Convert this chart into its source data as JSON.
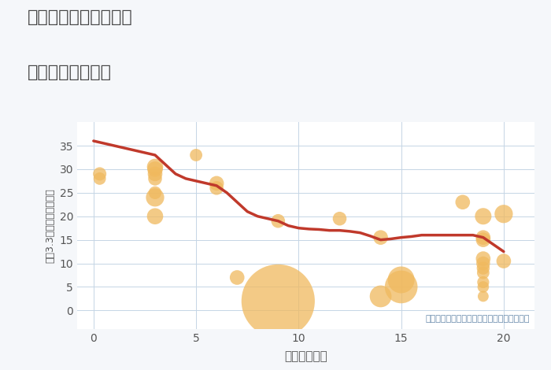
{
  "title_line1": "埼玉県東松山市元宿の",
  "title_line2": "駅距離別土地価格",
  "xlabel": "駅距離（分）",
  "ylabel": "坪（3.3㎡）単価（万円）",
  "annotation": "円の大きさは、取引のあった物件面積を示す",
  "bg_color": "#f5f7fa",
  "plot_bg_color": "#ffffff",
  "scatter_color": "#f0b95e",
  "scatter_alpha": 0.75,
  "line_color": "#c0392b",
  "line_width": 2.5,
  "xlim": [
    -0.8,
    21.5
  ],
  "ylim": [
    -4,
    40
  ],
  "xticks": [
    0,
    5,
    10,
    15,
    20
  ],
  "yticks": [
    0,
    5,
    10,
    15,
    20,
    25,
    30,
    35
  ],
  "scatter_x": [
    0.3,
    0.3,
    3,
    3,
    3,
    3,
    3,
    3,
    3,
    5,
    6,
    6,
    7,
    9,
    9,
    12,
    14,
    14,
    15,
    15,
    18,
    19,
    19,
    19,
    19,
    19,
    19,
    19,
    19,
    19,
    19,
    20,
    20
  ],
  "scatter_y": [
    29,
    28,
    30.5,
    30,
    29,
    28,
    25,
    24,
    20,
    33,
    27,
    26,
    7,
    19,
    2,
    19.5,
    15.5,
    3,
    6.5,
    5,
    23,
    20,
    15.5,
    15,
    11,
    10,
    9,
    8,
    6,
    5,
    3,
    20.5,
    10.5
  ],
  "scatter_s": [
    150,
    130,
    220,
    200,
    180,
    160,
    140,
    280,
    220,
    130,
    180,
    160,
    180,
    160,
    4500,
    160,
    180,
    400,
    600,
    900,
    180,
    230,
    180,
    180,
    180,
    160,
    140,
    130,
    120,
    110,
    100,
    280,
    180
  ],
  "line_x": [
    0,
    0.5,
    1,
    1.5,
    2,
    2.5,
    3,
    3.5,
    4,
    4.5,
    5,
    5.5,
    6,
    6.5,
    7,
    7.5,
    8,
    8.5,
    9,
    9.5,
    10,
    10.5,
    11,
    11.5,
    12,
    12.5,
    13,
    13.5,
    14,
    14.5,
    15,
    15.5,
    16,
    16.5,
    17,
    17.5,
    18,
    18.5,
    19,
    19.5,
    20
  ],
  "line_y": [
    36,
    35.5,
    35,
    34.5,
    34,
    33.5,
    33,
    31,
    29,
    28,
    27.5,
    27,
    26.5,
    25,
    23,
    21,
    20,
    19.5,
    19,
    18,
    17.5,
    17.3,
    17.2,
    17,
    17,
    16.8,
    16.5,
    15.8,
    15,
    15.2,
    15.5,
    15.7,
    16,
    16,
    16,
    16,
    16,
    16,
    15.5,
    14,
    12.5
  ]
}
